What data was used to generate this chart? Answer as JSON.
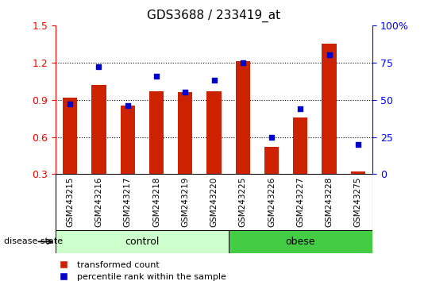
{
  "title": "GDS3688 / 233419_at",
  "categories": [
    "GSM243215",
    "GSM243216",
    "GSM243217",
    "GSM243218",
    "GSM243219",
    "GSM243220",
    "GSM243225",
    "GSM243226",
    "GSM243227",
    "GSM243228",
    "GSM243275"
  ],
  "red_values": [
    0.92,
    1.02,
    0.85,
    0.97,
    0.96,
    0.97,
    1.21,
    0.52,
    0.76,
    1.35,
    0.32
  ],
  "blue_pct": [
    47,
    72,
    46,
    66,
    55,
    63,
    75,
    25,
    44,
    80,
    20
  ],
  "ylim_left": [
    0.3,
    1.5
  ],
  "ylim_right": [
    0,
    100
  ],
  "yticks_left": [
    0.3,
    0.6,
    0.9,
    1.2,
    1.5
  ],
  "yticks_right": [
    0,
    25,
    50,
    75,
    100
  ],
  "ytick_labels_right": [
    "0",
    "25",
    "50",
    "75",
    "100%"
  ],
  "control_count": 6,
  "obese_count": 5,
  "control_label": "control",
  "obese_label": "obese",
  "disease_state_label": "disease state",
  "legend_red": "transformed count",
  "legend_blue": "percentile rank within the sample",
  "bar_color": "#cc2200",
  "dot_color": "#0000cc",
  "control_bg": "#ccffcc",
  "obese_bg": "#44cc44",
  "tick_bg": "#cccccc",
  "bar_width": 0.5,
  "dot_size": 25
}
